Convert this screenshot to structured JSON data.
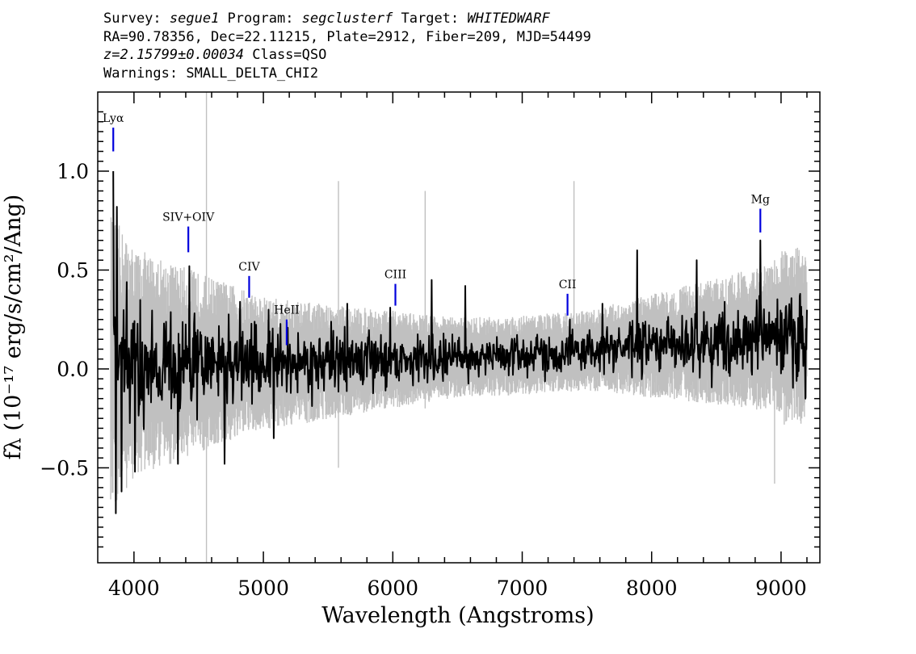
{
  "header": {
    "line1": {
      "survey_label": "Survey: ",
      "survey": "segue1",
      "program_label": " Program: ",
      "program": "segclusterf",
      "target_label": " Target: ",
      "target": "WHITEDWARF"
    },
    "line2": "RA=90.78356, Dec=22.11215, Plate=2912, Fiber=209, MJD=54499",
    "line3": {
      "redshift": "z=2.15799±0.00034",
      "class": " Class=QSO"
    },
    "line4": "Warnings: SMALL_DELTA_CHI2"
  },
  "chart_data": {
    "type": "line",
    "xlabel": "Wavelength (Angstroms)",
    "ylabel": "fλ (10⁻¹⁷ erg/s/cm²/Ang)",
    "xlim": [
      3720,
      9300
    ],
    "ylim": [
      -0.98,
      1.4
    ],
    "xticks": [
      4000,
      5000,
      6000,
      7000,
      8000,
      9000
    ],
    "ytick_labels": [
      {
        "value": 1.0,
        "label": "1.0"
      },
      {
        "value": 0.5,
        "label": "0.5"
      },
      {
        "value": 0.0,
        "label": "0.0"
      },
      {
        "value": -0.5,
        "label": "−0.5"
      }
    ],
    "grid": false,
    "series": [
      {
        "role": "noise-envelope",
        "color": "#c0c0c0",
        "x_start": 3820,
        "x_end": 9200,
        "spikes": [
          {
            "x": 4560,
            "y0": -0.98,
            "y1": 1.4
          },
          {
            "x": 5580,
            "y0": -0.5,
            "y1": 0.95
          },
          {
            "x": 6250,
            "y0": -0.2,
            "y1": 0.9
          },
          {
            "x": 7400,
            "y0": -0.1,
            "y1": 0.95
          },
          {
            "x": 8950,
            "y0": -0.58,
            "y1": 0.55
          }
        ]
      },
      {
        "role": "flux",
        "color": "#000000",
        "x_start": 3840,
        "x_end": 9200,
        "peaks": [
          {
            "x": 3840,
            "y": 1.0
          },
          {
            "x": 3870,
            "y": 0.82
          },
          {
            "x": 4430,
            "y": 0.52
          },
          {
            "x": 4820,
            "y": 0.34
          },
          {
            "x": 5040,
            "y": 0.3
          },
          {
            "x": 5650,
            "y": 0.33
          },
          {
            "x": 5980,
            "y": 0.31
          },
          {
            "x": 6300,
            "y": 0.45
          },
          {
            "x": 6560,
            "y": 0.42
          },
          {
            "x": 7370,
            "y": 0.25
          },
          {
            "x": 7620,
            "y": 0.33
          },
          {
            "x": 7890,
            "y": 0.6
          },
          {
            "x": 8350,
            "y": 0.55
          },
          {
            "x": 8840,
            "y": 0.65
          },
          {
            "x": 9150,
            "y": 0.38
          }
        ],
        "dips": [
          {
            "x": 3860,
            "y": -0.73
          },
          {
            "x": 3905,
            "y": -0.62
          },
          {
            "x": 4010,
            "y": -0.52
          },
          {
            "x": 4340,
            "y": -0.48
          },
          {
            "x": 4700,
            "y": -0.48
          },
          {
            "x": 5080,
            "y": -0.35
          },
          {
            "x": 9190,
            "y": -0.15
          }
        ]
      }
    ],
    "lines": [
      {
        "name": "Lyα",
        "x": 3840,
        "mark_y0": 1.1,
        "mark_y1": 1.22
      },
      {
        "name": "SIV+OIV",
        "x": 4420,
        "mark_y0": 0.59,
        "mark_y1": 0.72
      },
      {
        "name": "CIV",
        "x": 4890,
        "mark_y0": 0.36,
        "mark_y1": 0.47
      },
      {
        "name": "HeII",
        "x": 5180,
        "mark_y0": 0.12,
        "mark_y1": 0.25
      },
      {
        "name": "CIII",
        "x": 6020,
        "mark_y0": 0.32,
        "mark_y1": 0.43
      },
      {
        "name": "CII",
        "x": 7350,
        "mark_y0": 0.27,
        "mark_y1": 0.38
      },
      {
        "name": "Mg",
        "x": 8840,
        "mark_y0": 0.69,
        "mark_y1": 0.81
      }
    ],
    "line_marker_color": "#0000dd"
  }
}
